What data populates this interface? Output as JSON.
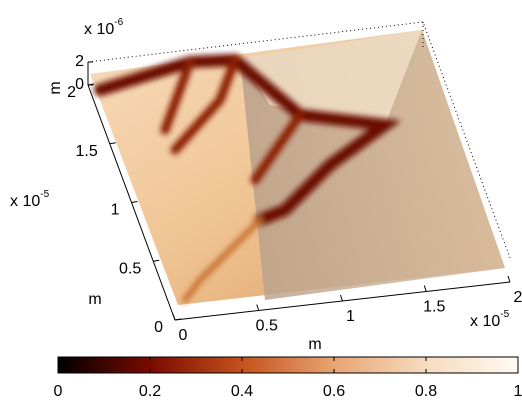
{
  "chart_data": {
    "type": "surface",
    "x_label": "m",
    "y_label": "m",
    "z_label": "m",
    "xlim": [
      0,
      2
    ],
    "xticks": [
      0,
      0.5,
      1,
      1.5,
      2
    ],
    "x_multiplier": {
      "base": "x 10",
      "exponent": "-5"
    },
    "ylim": [
      0,
      2
    ],
    "yticks": [
      0,
      0.5,
      1,
      1.5,
      2
    ],
    "y_multiplier": {
      "base": "x 10",
      "exponent": "-5"
    },
    "zlim": [
      0,
      2
    ],
    "zticks": [
      0,
      2
    ],
    "z_multiplier": {
      "base": "x 10",
      "exponent": "-6"
    },
    "colorbar": {
      "lim": [
        0,
        1
      ],
      "ticks": [
        0,
        0.2,
        0.4,
        0.6,
        0.8,
        1
      ],
      "colors": [
        "#000000",
        "#7a0a00",
        "#c4521c",
        "#e8a473",
        "#f6dcc0",
        "#fffaf0"
      ]
    }
  }
}
